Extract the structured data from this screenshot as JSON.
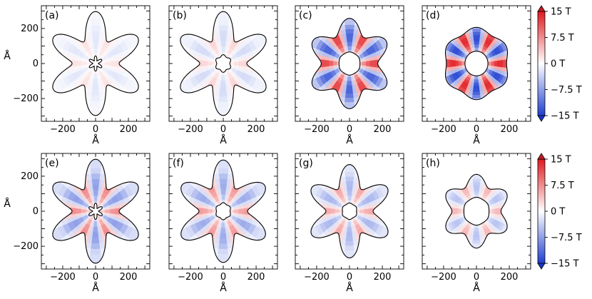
{
  "figure": {
    "units": "Å",
    "colorbar": {
      "label_min": "−15 T",
      "label_max": "15 T",
      "range": [
        -15,
        15
      ],
      "ticks": [
        {
          "value": 15,
          "label": "15 T"
        },
        {
          "value": 7.5,
          "label": "7.5 T"
        },
        {
          "value": 0,
          "label": "0 T"
        },
        {
          "value": -7.5,
          "label": "−7.5 T"
        },
        {
          "value": -15,
          "label": "−15 T"
        }
      ],
      "colors": {
        "high": "#d7191c",
        "mid": "#ffffff",
        "low": "#1f3fd0"
      }
    }
  },
  "chart_data": [
    {
      "type": "heatmap",
      "panel_label": "(a)",
      "xlabel": "Å",
      "ylabel": "Å",
      "xlim": [
        -330,
        330
      ],
      "ylim": [
        -330,
        330
      ],
      "xticks": [
        {
          "value": -200,
          "label": "−200"
        },
        {
          "value": 0,
          "label": "0"
        },
        {
          "value": 200,
          "label": "200"
        }
      ],
      "yticks": [
        {
          "value": 200,
          "label": "200"
        },
        {
          "value": 0,
          "label": "0"
        },
        {
          "value": -200,
          "label": "−200"
        }
      ],
      "outer_radius": 220,
      "outer_modulation": 0.35,
      "inner_radius": 30,
      "inner_modulation": 0.45,
      "field_amplitude_T": 2,
      "field_sign": 1
    },
    {
      "type": "heatmap",
      "panel_label": "(b)",
      "xlabel": "Å",
      "ylabel": "",
      "xlim": [
        -330,
        330
      ],
      "ylim": [
        -330,
        330
      ],
      "xticks": [
        {
          "value": -200,
          "label": "−200"
        },
        {
          "value": 0,
          "label": "0"
        },
        {
          "value": 200,
          "label": "200"
        }
      ],
      "yticks": [],
      "outer_radius": 220,
      "outer_modulation": 0.35,
      "inner_radius": 45,
      "inner_modulation": 0.12,
      "field_amplitude_T": 3,
      "field_sign": 1
    },
    {
      "type": "heatmap",
      "panel_label": "(c)",
      "xlabel": "Å",
      "ylabel": "",
      "xlim": [
        -330,
        330
      ],
      "ylim": [
        -330,
        330
      ],
      "xticks": [
        {
          "value": -200,
          "label": "−200"
        },
        {
          "value": 0,
          "label": "0"
        },
        {
          "value": 200,
          "label": "200"
        }
      ],
      "yticks": [],
      "outer_radius": 215,
      "outer_modulation": 0.2,
      "inner_radius": 65,
      "inner_modulation": 0.02,
      "field_amplitude_T": 13,
      "field_sign": 1
    },
    {
      "type": "heatmap",
      "panel_label": "(d)",
      "xlabel": "Å",
      "ylabel": "",
      "xlim": [
        -330,
        330
      ],
      "ylim": [
        -330,
        330
      ],
      "xticks": [
        {
          "value": -200,
          "label": "−200"
        },
        {
          "value": 0,
          "label": "0"
        },
        {
          "value": 200,
          "label": "200"
        }
      ],
      "yticks": [],
      "outer_radius": 195,
      "outer_modulation": 0.06,
      "inner_radius": 70,
      "inner_modulation": 0.0,
      "field_amplitude_T": 15,
      "field_sign": 1
    },
    {
      "type": "heatmap",
      "panel_label": "(e)",
      "xlabel": "Å",
      "ylabel": "Å",
      "xlim": [
        -330,
        330
      ],
      "ylim": [
        -330,
        330
      ],
      "xticks": [
        {
          "value": -200,
          "label": "−200"
        },
        {
          "value": 0,
          "label": "0"
        },
        {
          "value": 200,
          "label": "200"
        }
      ],
      "yticks": [
        {
          "value": 200,
          "label": "200"
        },
        {
          "value": 0,
          "label": "0"
        },
        {
          "value": -200,
          "label": "−200"
        }
      ],
      "outer_radius": 220,
      "outer_modulation": 0.35,
      "inner_radius": 32,
      "inner_modulation": 0.45,
      "field_amplitude_T": 8,
      "field_sign": 1
    },
    {
      "type": "heatmap",
      "panel_label": "(f)",
      "xlabel": "Å",
      "ylabel": "",
      "xlim": [
        -330,
        330
      ],
      "ylim": [
        -330,
        330
      ],
      "xticks": [
        {
          "value": -200,
          "label": "−200"
        },
        {
          "value": 0,
          "label": "0"
        },
        {
          "value": 200,
          "label": "200"
        }
      ],
      "yticks": [],
      "outer_radius": 220,
      "outer_modulation": 0.33,
      "inner_radius": 45,
      "inner_modulation": 0.08,
      "field_amplitude_T": 7,
      "field_sign": 1
    },
    {
      "type": "heatmap",
      "panel_label": "(g)",
      "xlabel": "Å",
      "ylabel": "",
      "xlim": [
        -330,
        330
      ],
      "ylim": [
        -330,
        330
      ],
      "xticks": [
        {
          "value": -200,
          "label": "−200"
        },
        {
          "value": 0,
          "label": "0"
        },
        {
          "value": 200,
          "label": "200"
        }
      ],
      "yticks": [],
      "outer_radius": 205,
      "outer_modulation": 0.3,
      "inner_radius": 45,
      "inner_modulation": 0.05,
      "field_amplitude_T": 6,
      "field_sign": 1
    },
    {
      "type": "heatmap",
      "panel_label": "(h)",
      "xlabel": "Å",
      "ylabel": "",
      "xlim": [
        -330,
        330
      ],
      "ylim": [
        -330,
        330
      ],
      "xticks": [
        {
          "value": -200,
          "label": "−200"
        },
        {
          "value": 0,
          "label": "0"
        },
        {
          "value": 200,
          "label": "200"
        }
      ],
      "yticks": [],
      "outer_radius": 180,
      "outer_modulation": 0.17,
      "inner_radius": 78,
      "inner_modulation": 0.02,
      "field_amplitude_T": 5,
      "field_sign": 1
    }
  ]
}
